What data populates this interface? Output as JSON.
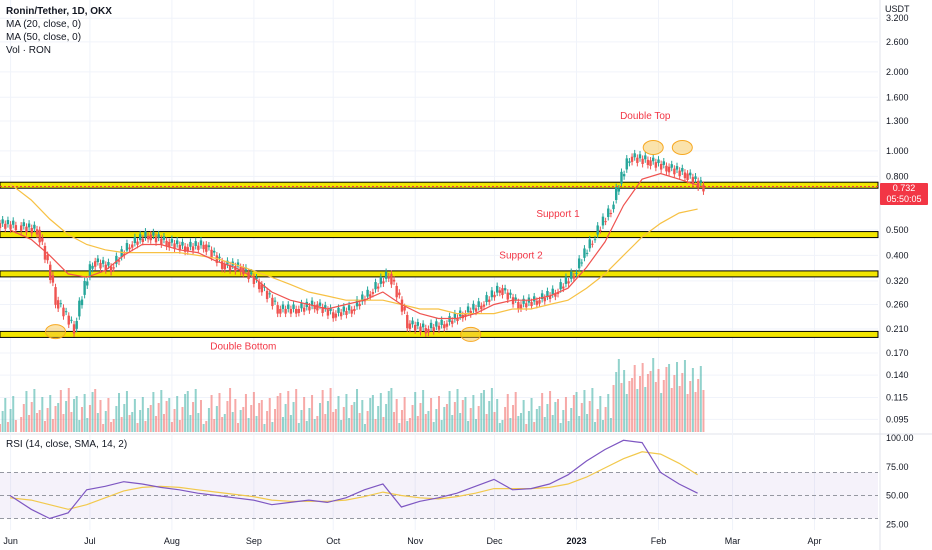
{
  "legend": {
    "title": "Ronin/Tether, 1D, OKX",
    "ma20": "MA (20, close, 0)",
    "ma50": "MA (50, close, 0)",
    "vol": "Vol · RON"
  },
  "rsi_legend": "RSI (14, close, SMA, 14, 2)",
  "price_unit": "USDT",
  "last_price": {
    "value": "0.732",
    "countdown": "05:50:05",
    "color": "#f23645"
  },
  "colors": {
    "up": "#26a69a",
    "down": "#ef5350",
    "ma20": "#ef5350",
    "ma50": "#f7c144",
    "rsi": "#7e57c2",
    "rsi_sma": "#f2c94c",
    "level": "#f2e500",
    "annotation": "#f23645"
  },
  "annotations": {
    "double_top": "Double Top",
    "support_1": "Support 1",
    "support_2": "Support 2",
    "double_bottom": "Double Bottom"
  },
  "chart_data": [
    {
      "type": "candlestick",
      "title": "Ronin/Tether, 1D, OKX",
      "y_scale": "log",
      "ylim": [
        0.085,
        3.5
      ],
      "y_ticks": [
        "3.200",
        "2.600",
        "2.000",
        "1.600",
        "1.300",
        "1.000",
        "0.800",
        "0.500",
        "0.400",
        "0.320",
        "0.260",
        "0.210",
        "0.170",
        "0.140",
        "0.115",
        "0.095"
      ],
      "x_ticks": [
        "Jun",
        "Jul",
        "Aug",
        "Sep",
        "Oct",
        "Nov",
        "Dec",
        "2023",
        "Feb",
        "Mar",
        "Apr"
      ],
      "grid": true,
      "price_series": {
        "name": "Ronin/Tether",
        "x": [
          "2022-05-28",
          "2022-06-05",
          "2022-06-12",
          "2022-06-19",
          "2022-06-26",
          "2022-07-03",
          "2022-07-10",
          "2022-07-17",
          "2022-07-24",
          "2022-07-31",
          "2022-08-07",
          "2022-08-14",
          "2022-08-21",
          "2022-08-28",
          "2022-09-04",
          "2022-09-11",
          "2022-09-18",
          "2022-09-25",
          "2022-10-02",
          "2022-10-09",
          "2022-10-16",
          "2022-10-23",
          "2022-10-30",
          "2022-11-06",
          "2022-11-13",
          "2022-11-20",
          "2022-11-27",
          "2022-12-04",
          "2022-12-11",
          "2022-12-18",
          "2022-12-25",
          "2023-01-01",
          "2023-01-08",
          "2023-01-15",
          "2023-01-22",
          "2023-01-29",
          "2023-02-05",
          "2023-02-12"
        ],
        "close": [
          0.52,
          0.5,
          0.27,
          0.21,
          0.38,
          0.36,
          0.44,
          0.48,
          0.45,
          0.43,
          0.44,
          0.37,
          0.36,
          0.31,
          0.25,
          0.25,
          0.26,
          0.24,
          0.25,
          0.29,
          0.34,
          0.22,
          0.21,
          0.22,
          0.24,
          0.26,
          0.3,
          0.26,
          0.27,
          0.29,
          0.34,
          0.46,
          0.6,
          0.95,
          0.92,
          0.87,
          0.82,
          0.73
        ]
      },
      "ma20": {
        "name": "MA (20, close, 0)",
        "values": [
          0.5,
          0.46,
          0.4,
          0.34,
          0.33,
          0.35,
          0.4,
          0.44,
          0.44,
          0.42,
          0.41,
          0.38,
          0.36,
          0.33,
          0.29,
          0.27,
          0.26,
          0.25,
          0.26,
          0.27,
          0.29,
          0.26,
          0.24,
          0.23,
          0.23,
          0.24,
          0.26,
          0.27,
          0.27,
          0.28,
          0.3,
          0.36,
          0.45,
          0.62,
          0.78,
          0.82,
          0.78,
          0.74
        ]
      },
      "ma50": {
        "name": "MA (50, close, 0)",
        "values": [
          0.75,
          0.65,
          0.55,
          0.48,
          0.44,
          0.42,
          0.41,
          0.41,
          0.41,
          0.41,
          0.4,
          0.39,
          0.37,
          0.35,
          0.33,
          0.31,
          0.29,
          0.28,
          0.27,
          0.27,
          0.27,
          0.26,
          0.25,
          0.25,
          0.24,
          0.24,
          0.24,
          0.25,
          0.25,
          0.26,
          0.27,
          0.3,
          0.34,
          0.4,
          0.47,
          0.53,
          0.58,
          0.6
        ]
      },
      "support_levels": [
        0.74,
        0.48,
        0.34,
        0.2
      ]
    },
    {
      "type": "line",
      "title": "RSI (14, close, SMA, 14, 2)",
      "ylim": [
        20,
        100
      ],
      "y_ticks": [
        "100.00",
        "75.00",
        "50.00",
        "25.00"
      ],
      "series": [
        {
          "name": "RSI",
          "values": [
            50,
            38,
            30,
            35,
            55,
            58,
            62,
            60,
            57,
            55,
            52,
            50,
            48,
            46,
            42,
            44,
            46,
            44,
            48,
            55,
            60,
            40,
            45,
            48,
            52,
            58,
            64,
            55,
            56,
            60,
            68,
            80,
            90,
            98,
            96,
            70,
            60,
            52
          ]
        },
        {
          "name": "RSI SMA",
          "values": [
            48,
            46,
            42,
            38,
            42,
            48,
            54,
            57,
            58,
            57,
            55,
            53,
            51,
            49,
            46,
            45,
            45,
            45,
            46,
            49,
            53,
            50,
            48,
            47,
            49,
            52,
            56,
            56,
            56,
            57,
            60,
            66,
            74,
            82,
            88,
            86,
            78,
            68
          ]
        }
      ]
    }
  ]
}
